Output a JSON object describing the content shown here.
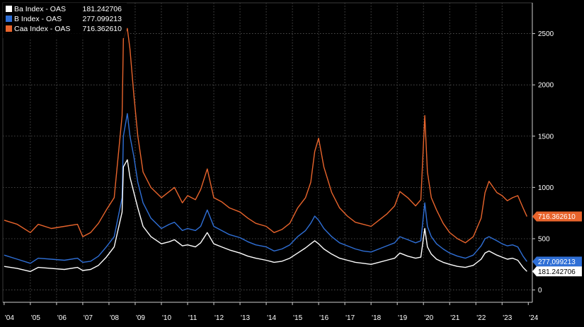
{
  "chart_data": {
    "type": "line",
    "title": "",
    "xlabel": "",
    "ylabel": "",
    "grid": true,
    "legend_position": "top-left",
    "xlim": [
      2003.95,
      2024.1
    ],
    "ylim": [
      -120,
      2800
    ],
    "yticks": [
      0,
      500,
      1000,
      1500,
      2000,
      2500
    ],
    "ytick_labels": [
      "0",
      "500",
      "1000",
      "1500",
      "2000",
      "2500"
    ],
    "xticks": [
      2004,
      2005,
      2006,
      2007,
      2008,
      2009,
      2010,
      2011,
      2012,
      2013,
      2014,
      2015,
      2016,
      2017,
      2018,
      2019,
      2020,
      2021,
      2022,
      2023,
      2024
    ],
    "xtick_labels": [
      "'04",
      "'05",
      "'06",
      "'07",
      "'08",
      "'09",
      "'10",
      "'11",
      "'12",
      "'13",
      "'14",
      "'15",
      "'16",
      "'17",
      "'18",
      "'19",
      "'20",
      "'21",
      "'22",
      "'23",
      "'24"
    ],
    "series": [
      {
        "name": "Caa Index - OAS",
        "legend_value": "716.362610",
        "last_label": "716.362610",
        "color": "#e8642c",
        "x": [
          2004.0,
          2004.5,
          2005.0,
          2005.3,
          2005.8,
          2006.3,
          2006.8,
          2007.0,
          2007.3,
          2007.6,
          2007.9,
          2008.2,
          2008.5,
          2008.55,
          2008.7,
          2008.8,
          2008.95,
          2009.1,
          2009.3,
          2009.6,
          2010.0,
          2010.3,
          2010.5,
          2010.8,
          2011.0,
          2011.3,
          2011.5,
          2011.75,
          2012.0,
          2012.3,
          2012.6,
          2013.0,
          2013.3,
          2013.6,
          2014.0,
          2014.3,
          2014.6,
          2014.9,
          2015.2,
          2015.5,
          2015.7,
          2015.85,
          2016.0,
          2016.2,
          2016.5,
          2016.8,
          2017.1,
          2017.4,
          2017.7,
          2018.0,
          2018.3,
          2018.6,
          2018.9,
          2019.1,
          2019.4,
          2019.7,
          2019.9,
          2020.05,
          2020.15,
          2020.3,
          2020.5,
          2020.75,
          2021.0,
          2021.3,
          2021.6,
          2021.9,
          2022.2,
          2022.35,
          2022.5,
          2022.8,
          2023.0,
          2023.2,
          2023.4,
          2023.6,
          2023.8,
          2023.95
        ],
        "values": [
          680,
          640,
          560,
          640,
          600,
          620,
          640,
          520,
          560,
          650,
          780,
          900,
          1700,
          2450,
          2550,
          2350,
          1900,
          1500,
          1150,
          1000,
          900,
          960,
          1000,
          850,
          920,
          880,
          980,
          1180,
          900,
          860,
          800,
          760,
          700,
          650,
          620,
          560,
          590,
          650,
          800,
          900,
          1050,
          1350,
          1480,
          1200,
          950,
          800,
          720,
          660,
          640,
          620,
          680,
          740,
          820,
          960,
          900,
          820,
          880,
          1700,
          1150,
          900,
          780,
          650,
          560,
          500,
          460,
          520,
          700,
          950,
          1060,
          950,
          920,
          870,
          900,
          920,
          800,
          716.36261
        ]
      },
      {
        "name": "B Index - OAS",
        "legend_value": "277.099213",
        "last_label": "277,099213",
        "color": "#2f6fd6",
        "x": [
          2004.0,
          2004.5,
          2005.0,
          2005.3,
          2005.8,
          2006.3,
          2006.8,
          2007.0,
          2007.3,
          2007.6,
          2007.9,
          2008.2,
          2008.5,
          2008.55,
          2008.7,
          2008.8,
          2008.95,
          2009.1,
          2009.3,
          2009.6,
          2010.0,
          2010.3,
          2010.5,
          2010.8,
          2011.0,
          2011.3,
          2011.5,
          2011.75,
          2012.0,
          2012.3,
          2012.6,
          2013.0,
          2013.3,
          2013.6,
          2014.0,
          2014.3,
          2014.6,
          2014.9,
          2015.2,
          2015.5,
          2015.7,
          2015.85,
          2016.0,
          2016.2,
          2016.5,
          2016.8,
          2017.1,
          2017.4,
          2017.7,
          2018.0,
          2018.3,
          2018.6,
          2018.9,
          2019.1,
          2019.4,
          2019.7,
          2019.9,
          2020.05,
          2020.15,
          2020.3,
          2020.5,
          2020.75,
          2021.0,
          2021.3,
          2021.6,
          2021.9,
          2022.2,
          2022.35,
          2022.5,
          2022.8,
          2023.0,
          2023.2,
          2023.4,
          2023.6,
          2023.8,
          2023.95
        ],
        "values": [
          340,
          300,
          260,
          310,
          300,
          290,
          310,
          270,
          280,
          330,
          420,
          520,
          900,
          1500,
          1720,
          1500,
          1300,
          1050,
          850,
          700,
          600,
          640,
          660,
          580,
          600,
          580,
          620,
          780,
          620,
          580,
          540,
          510,
          470,
          440,
          420,
          380,
          400,
          440,
          520,
          580,
          650,
          720,
          680,
          600,
          520,
          460,
          430,
          400,
          380,
          370,
          400,
          430,
          460,
          520,
          490,
          460,
          480,
          850,
          620,
          520,
          450,
          400,
          360,
          330,
          310,
          340,
          430,
          500,
          520,
          480,
          450,
          430,
          440,
          420,
          330,
          277.099213
        ]
      },
      {
        "name": "Ba Index - OAS",
        "legend_value": "181.242706",
        "last_label": "181.242706",
        "color": "#ffffff",
        "x": [
          2004.0,
          2004.5,
          2005.0,
          2005.3,
          2005.8,
          2006.3,
          2006.8,
          2007.0,
          2007.3,
          2007.6,
          2007.9,
          2008.2,
          2008.5,
          2008.55,
          2008.7,
          2008.8,
          2008.95,
          2009.1,
          2009.3,
          2009.6,
          2010.0,
          2010.3,
          2010.5,
          2010.8,
          2011.0,
          2011.3,
          2011.5,
          2011.75,
          2012.0,
          2012.3,
          2012.6,
          2013.0,
          2013.3,
          2013.6,
          2014.0,
          2014.3,
          2014.6,
          2014.9,
          2015.2,
          2015.5,
          2015.7,
          2015.85,
          2016.0,
          2016.2,
          2016.5,
          2016.8,
          2017.1,
          2017.4,
          2017.7,
          2018.0,
          2018.3,
          2018.6,
          2018.9,
          2019.1,
          2019.4,
          2019.7,
          2019.9,
          2020.05,
          2020.15,
          2020.3,
          2020.5,
          2020.75,
          2021.0,
          2021.3,
          2021.6,
          2021.9,
          2022.2,
          2022.35,
          2022.5,
          2022.8,
          2023.0,
          2023.2,
          2023.4,
          2023.6,
          2023.8,
          2023.95
        ],
        "values": [
          230,
          210,
          180,
          220,
          210,
          200,
          220,
          190,
          200,
          240,
          320,
          420,
          760,
          1200,
          1270,
          1100,
          950,
          800,
          620,
          520,
          450,
          470,
          490,
          430,
          440,
          420,
          460,
          560,
          450,
          420,
          390,
          360,
          330,
          310,
          290,
          270,
          280,
          310,
          360,
          410,
          450,
          480,
          450,
          400,
          350,
          310,
          290,
          270,
          260,
          250,
          270,
          290,
          310,
          360,
          330,
          310,
          320,
          600,
          420,
          350,
          300,
          270,
          250,
          230,
          220,
          240,
          300,
          360,
          380,
          340,
          320,
          300,
          310,
          290,
          220,
          181.242706
        ]
      }
    ]
  }
}
